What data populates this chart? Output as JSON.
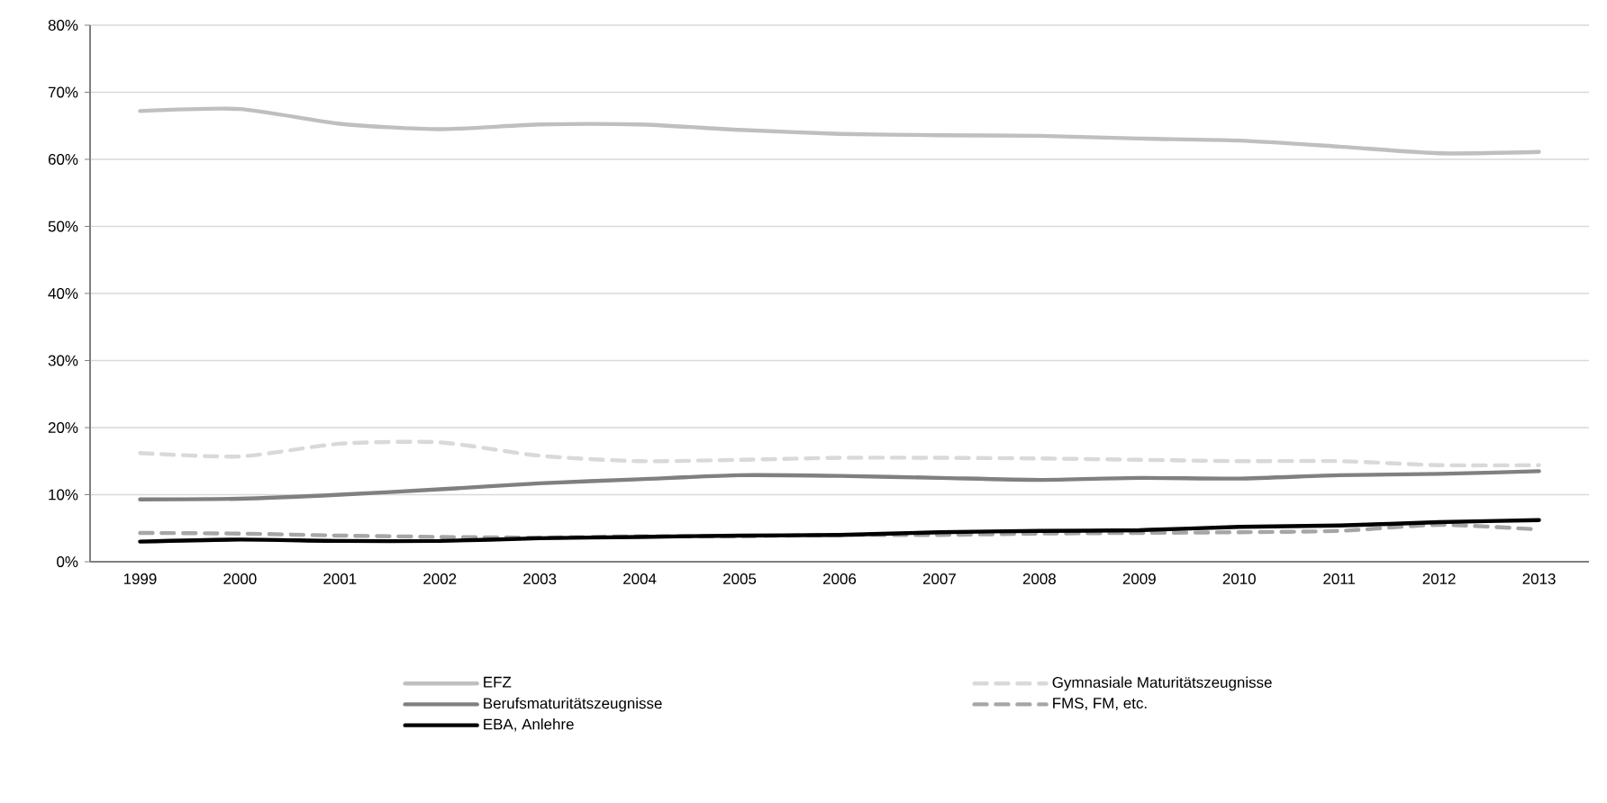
{
  "chart_data": {
    "type": "line",
    "categories": [
      "1999",
      "2000",
      "2001",
      "2002",
      "2003",
      "2004",
      "2005",
      "2006",
      "2007",
      "2008",
      "2009",
      "2010",
      "2011",
      "2012",
      "2013"
    ],
    "series": [
      {
        "name": "EFZ",
        "color": "#bfbfbf",
        "line_style": "solid",
        "values": [
          67.2,
          67.5,
          65.3,
          64.5,
          65.2,
          65.2,
          64.4,
          63.8,
          63.6,
          63.5,
          63.1,
          62.8,
          61.9,
          60.9,
          61.1
        ]
      },
      {
        "name": "Gymnasiale Maturitätszeugnisse",
        "color": "#d9d9d9",
        "line_style": "dashed",
        "values": [
          16.2,
          15.7,
          17.6,
          17.8,
          15.8,
          15.0,
          15.2,
          15.5,
          15.5,
          15.4,
          15.2,
          15.0,
          15.0,
          14.4,
          14.4
        ]
      },
      {
        "name": "Berufsmaturitätszeugnisse",
        "color": "#808080",
        "line_style": "solid",
        "values": [
          9.3,
          9.4,
          10.0,
          10.8,
          11.7,
          12.3,
          12.9,
          12.8,
          12.5,
          12.2,
          12.5,
          12.4,
          12.9,
          13.1,
          13.5
        ]
      },
      {
        "name": "FMS, FM, etc.",
        "color": "#a6a6a6",
        "line_style": "dashed",
        "values": [
          4.3,
          4.2,
          3.9,
          3.7,
          3.6,
          3.8,
          3.8,
          4.0,
          4.0,
          4.2,
          4.3,
          4.4,
          4.6,
          5.5,
          4.8
        ]
      },
      {
        "name": "EBA, Anlehre",
        "color": "#000000",
        "line_style": "solid",
        "values": [
          3.0,
          3.3,
          3.1,
          3.1,
          3.5,
          3.7,
          3.9,
          4.0,
          4.4,
          4.6,
          4.7,
          5.2,
          5.4,
          5.9,
          6.2
        ]
      }
    ],
    "ylim": [
      0,
      80
    ],
    "yticks": [
      {
        "value": 0,
        "label": "0%"
      },
      {
        "value": 10,
        "label": "10%"
      },
      {
        "value": 20,
        "label": "20%"
      },
      {
        "value": 30,
        "label": "30%"
      },
      {
        "value": 40,
        "label": "40%"
      },
      {
        "value": 50,
        "label": "50%"
      },
      {
        "value": 60,
        "label": "60%"
      },
      {
        "value": 70,
        "label": "70%"
      },
      {
        "value": 80,
        "label": "80%"
      }
    ],
    "grid": "y",
    "legend": "bottom",
    "marker": "none"
  }
}
